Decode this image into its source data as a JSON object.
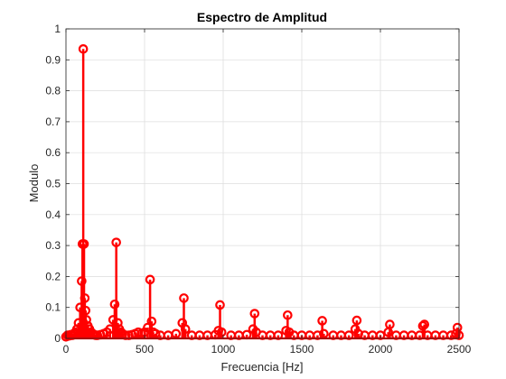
{
  "chart_data": {
    "type": "stem",
    "title": "Espectro de Amplitud",
    "xlabel": "Frecuencia [Hz]",
    "ylabel": "Modulo",
    "xlim": [
      0,
      2500
    ],
    "ylim": [
      0,
      1
    ],
    "x_ticks": [
      "0",
      "500",
      "1000",
      "1500",
      "2000",
      "2500"
    ],
    "x_tick_values": [
      0,
      500,
      1000,
      1500,
      2000,
      2500
    ],
    "y_ticks": [
      "0",
      "0.1",
      "0.2",
      "0.3",
      "0.4",
      "0.5",
      "0.6",
      "0.7",
      "0.8",
      "0.9",
      "1"
    ],
    "y_tick_values": [
      0,
      0.1,
      0.2,
      0.3,
      0.4,
      0.5,
      0.6,
      0.7,
      0.8,
      0.9,
      1
    ],
    "grid": true,
    "color": "#ff0000",
    "marker": "circle-open",
    "series": [
      {
        "x": [
          0,
          10,
          20,
          30,
          40,
          50,
          60,
          70,
          80,
          90,
          100,
          105,
          110,
          115,
          120,
          125,
          130,
          140,
          150,
          160,
          170,
          180,
          190,
          200,
          220,
          240,
          260,
          280,
          300,
          310,
          320,
          330,
          340,
          350,
          360,
          380,
          400,
          420,
          440,
          460,
          480,
          500,
          520,
          535,
          545,
          555,
          570,
          600,
          650,
          700,
          740,
          750,
          760,
          800,
          850,
          900,
          950,
          970,
          980,
          990,
          1050,
          1100,
          1150,
          1190,
          1200,
          1210,
          1250,
          1300,
          1350,
          1400,
          1410,
          1420,
          1450,
          1500,
          1550,
          1600,
          1630,
          1640,
          1700,
          1750,
          1800,
          1840,
          1850,
          1860,
          1900,
          1950,
          2000,
          2050,
          2060,
          2100,
          2150,
          2200,
          2250,
          2270,
          2280,
          2300,
          2350,
          2400,
          2450,
          2480,
          2490,
          2500
        ],
        "values": [
          0.005,
          0.01,
          0.008,
          0.012,
          0.01,
          0.015,
          0.02,
          0.03,
          0.05,
          0.1,
          0.185,
          0.305,
          0.935,
          0.305,
          0.13,
          0.09,
          0.06,
          0.04,
          0.03,
          0.02,
          0.015,
          0.012,
          0.01,
          0.01,
          0.012,
          0.015,
          0.02,
          0.03,
          0.06,
          0.11,
          0.31,
          0.05,
          0.03,
          0.02,
          0.015,
          0.01,
          0.01,
          0.012,
          0.015,
          0.02,
          0.015,
          0.02,
          0.035,
          0.19,
          0.055,
          0.02,
          0.015,
          0.01,
          0.01,
          0.015,
          0.05,
          0.13,
          0.03,
          0.01,
          0.01,
          0.01,
          0.012,
          0.025,
          0.108,
          0.02,
          0.01,
          0.01,
          0.012,
          0.03,
          0.08,
          0.02,
          0.01,
          0.01,
          0.01,
          0.025,
          0.075,
          0.02,
          0.01,
          0.01,
          0.01,
          0.01,
          0.057,
          0.015,
          0.01,
          0.01,
          0.01,
          0.03,
          0.058,
          0.015,
          0.01,
          0.01,
          0.01,
          0.02,
          0.045,
          0.01,
          0.01,
          0.01,
          0.01,
          0.04,
          0.045,
          0.01,
          0.01,
          0.01,
          0.01,
          0.015,
          0.035,
          0.01
        ]
      }
    ]
  }
}
